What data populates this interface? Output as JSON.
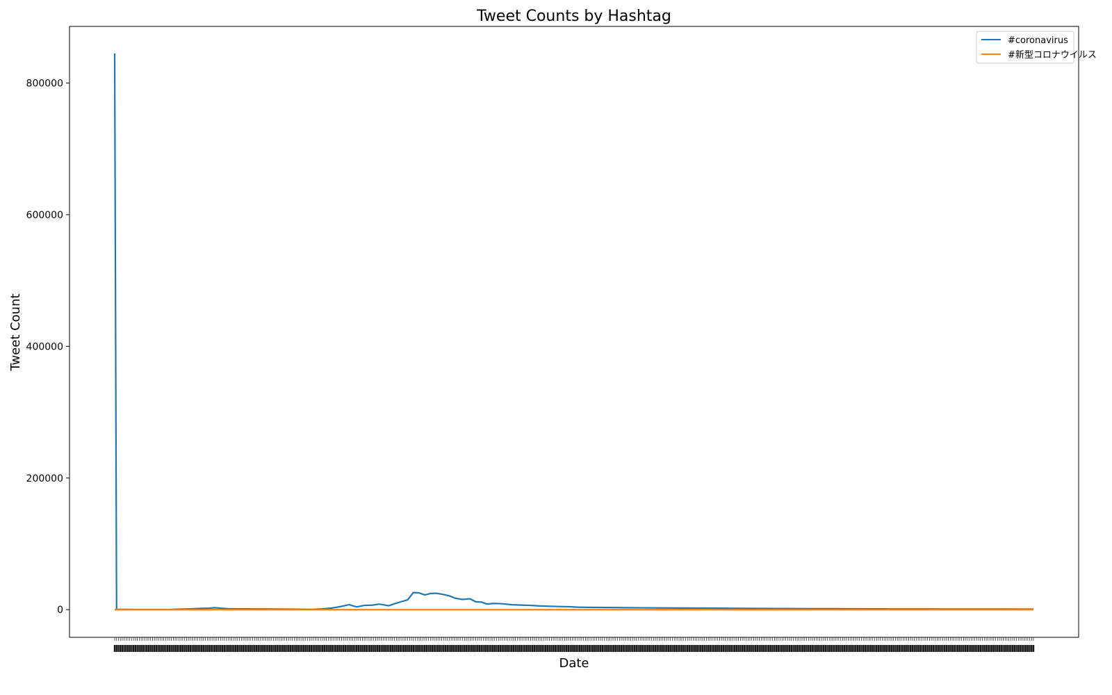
{
  "chart_data": {
    "type": "line",
    "title": "Tweet Counts by Hashtag",
    "xlabel": "Date",
    "ylabel": "Tweet Count",
    "ylim": [
      -42000,
      886000
    ],
    "yticks": [
      0,
      200000,
      400000,
      600000,
      800000
    ],
    "grid": false,
    "legend_position": "top-right",
    "x_count": 487,
    "series": [
      {
        "name": "#coronavirus",
        "color": "#1f77b4",
        "points": [
          [
            0,
            845000
          ],
          [
            1,
            500
          ],
          [
            10,
            300
          ],
          [
            20,
            250
          ],
          [
            30,
            400
          ],
          [
            35,
            800
          ],
          [
            40,
            1200
          ],
          [
            45,
            1800
          ],
          [
            50,
            2300
          ],
          [
            53,
            3000
          ],
          [
            56,
            2200
          ],
          [
            60,
            1400
          ],
          [
            65,
            1200
          ],
          [
            75,
            1100
          ],
          [
            85,
            900
          ],
          [
            95,
            700
          ],
          [
            100,
            500
          ],
          [
            105,
            400
          ],
          [
            110,
            1200
          ],
          [
            115,
            2500
          ],
          [
            120,
            5000
          ],
          [
            124,
            7500
          ],
          [
            128,
            4200
          ],
          [
            132,
            6500
          ],
          [
            136,
            6800
          ],
          [
            140,
            8500
          ],
          [
            145,
            6000
          ],
          [
            148,
            9000
          ],
          [
            152,
            12500
          ],
          [
            155,
            15000
          ],
          [
            158,
            26000
          ],
          [
            161,
            25500
          ],
          [
            164,
            22500
          ],
          [
            167,
            24500
          ],
          [
            170,
            25000
          ],
          [
            174,
            23000
          ],
          [
            177,
            21000
          ],
          [
            180,
            17500
          ],
          [
            184,
            15500
          ],
          [
            188,
            16500
          ],
          [
            191,
            12000
          ],
          [
            194,
            11500
          ],
          [
            197,
            8500
          ],
          [
            200,
            9500
          ],
          [
            205,
            9000
          ],
          [
            210,
            7500
          ],
          [
            215,
            7000
          ],
          [
            220,
            6500
          ],
          [
            225,
            5600
          ],
          [
            230,
            5200
          ],
          [
            235,
            4800
          ],
          [
            240,
            4500
          ],
          [
            245,
            3800
          ],
          [
            250,
            3500
          ],
          [
            260,
            3300
          ],
          [
            270,
            3000
          ],
          [
            280,
            2800
          ],
          [
            290,
            2600
          ],
          [
            300,
            2500
          ],
          [
            310,
            2400
          ],
          [
            320,
            2200
          ],
          [
            330,
            2000
          ],
          [
            340,
            1800
          ],
          [
            350,
            1700
          ],
          [
            360,
            1600
          ],
          [
            370,
            1500
          ],
          [
            380,
            1400
          ],
          [
            390,
            1300
          ],
          [
            400,
            1200
          ],
          [
            410,
            1100
          ],
          [
            420,
            1100
          ],
          [
            430,
            1000
          ],
          [
            440,
            950
          ],
          [
            450,
            900
          ],
          [
            460,
            900
          ],
          [
            470,
            850
          ],
          [
            480,
            800
          ],
          [
            486,
            800
          ]
        ]
      },
      {
        "name": "#新型コロナウイルス",
        "color": "#ff7f0e",
        "points": [
          [
            0,
            0
          ],
          [
            486,
            0
          ]
        ]
      }
    ]
  }
}
